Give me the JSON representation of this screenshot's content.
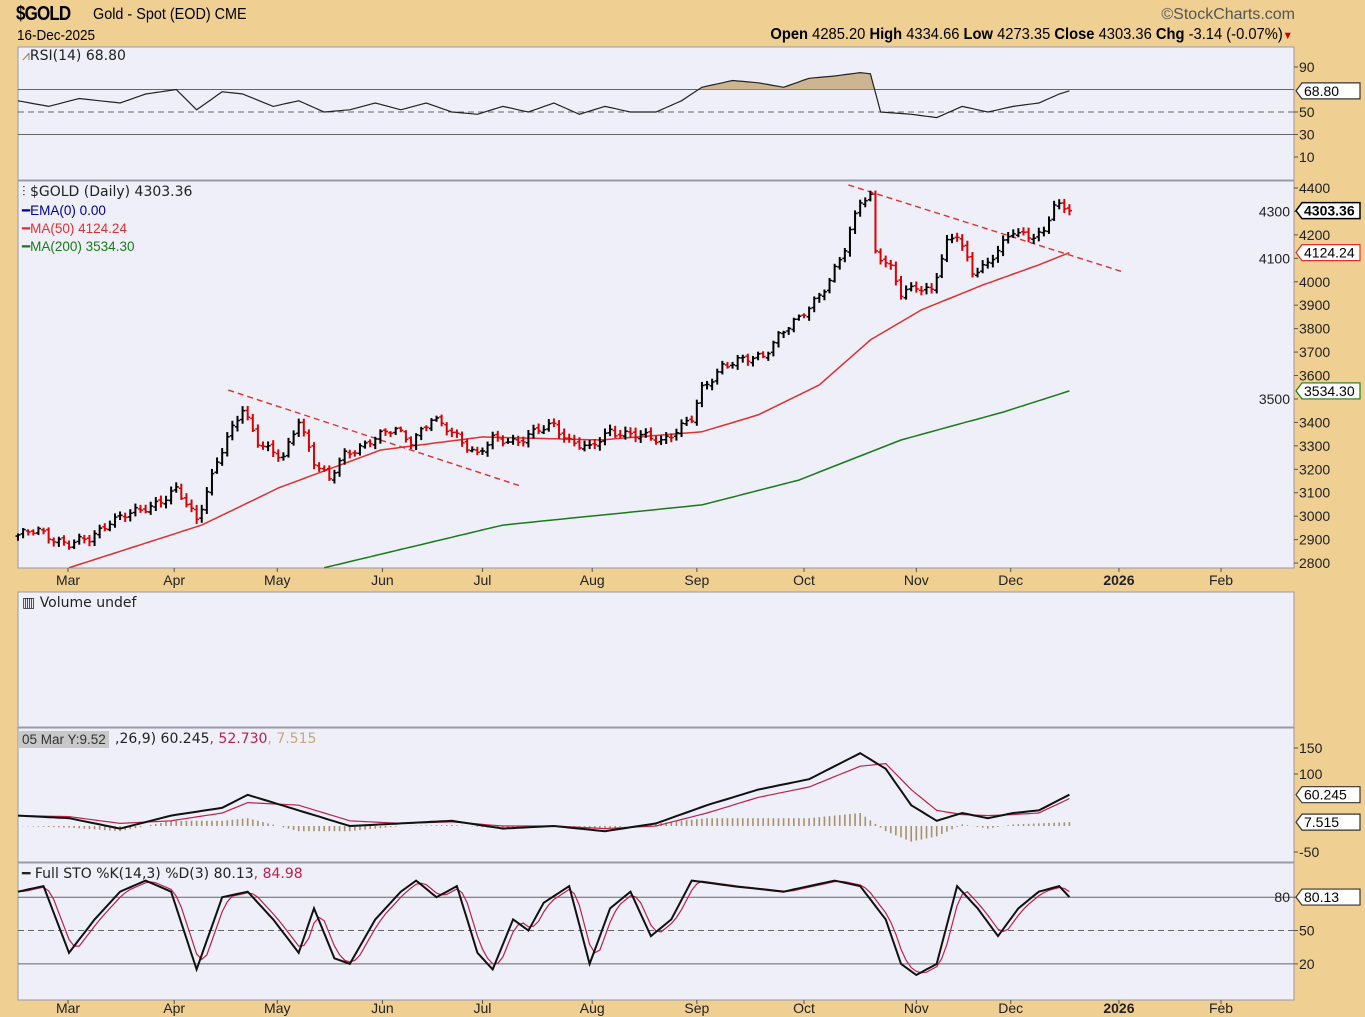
{
  "header": {
    "symbol": "$GOLD",
    "description": "Gold - Spot (EOD) CME",
    "date": "16-Dec-2025",
    "brand": "©StockCharts.com",
    "open_label": "Open",
    "open": "4285.20",
    "high_label": "High",
    "high": "4334.66",
    "low_label": "Low",
    "low": "4273.35",
    "close_label": "Close",
    "close": "4303.36",
    "chg_label": "Chg",
    "chg": "-3.14 (-0.07%)",
    "chg_arrow": "▼"
  },
  "legends": {
    "rsi": "RSI(14) 68.80",
    "price": "$GOLD (Daily) 4303.36",
    "ema": "EMA(0) 0.00",
    "ma50": "MA(50) 4124.24",
    "ma200": "MA(200) 3534.30",
    "volume": "Volume undef",
    "macd_suffix": ",26,9) 60.245",
    "macd_signal": ", 52.730",
    "macd_hist": ", 7.515",
    "tooltip": "05 Mar Y:9.52",
    "sto": "Full STO %K(14,3) %D(3) 80.13",
    "sto_d": ", 84.98"
  },
  "colors": {
    "background": "#efcf92",
    "panel": "#eeeff8",
    "up": "#000000",
    "down": "#dd0000",
    "ma50": "#e03030",
    "ma200": "#1a7a1a",
    "ema": "#000099",
    "rsi_fill": "#c8aa80",
    "macd_signal": "#c0204a",
    "macd_hist": "#a89068"
  },
  "chart_data": {
    "type": "line",
    "x_unit": "trading days since early Mar 2025",
    "xlim": [
      0,
      250
    ],
    "month_ticks": [
      {
        "label": "Mar",
        "day": 9.8
      },
      {
        "label": "Apr",
        "day": 30.6
      },
      {
        "label": "May",
        "day": 50.8
      },
      {
        "label": "Jun",
        "day": 71.4
      },
      {
        "label": "Jul",
        "day": 91
      },
      {
        "label": "Aug",
        "day": 112.5
      },
      {
        "label": "Sep",
        "day": 133
      },
      {
        "label": "Oct",
        "day": 154
      },
      {
        "label": "Nov",
        "day": 176
      },
      {
        "label": "Dec",
        "day": 194.5
      },
      {
        "label": "2026",
        "day": 215.7,
        "bold": true
      },
      {
        "label": "Feb",
        "day": 235.7
      }
    ],
    "price": {
      "ylim": [
        2780,
        4420
      ],
      "ticks": [
        4400,
        4300,
        4200,
        4100,
        4000,
        3900,
        3800,
        3700,
        3600,
        3500,
        3400,
        3300,
        3200,
        3100,
        3000,
        2900,
        2800
      ],
      "closes": [
        [
          0,
          2920
        ],
        [
          4,
          2935
        ],
        [
          10,
          2880
        ],
        [
          14,
          2900
        ],
        [
          18,
          2984
        ],
        [
          24,
          3020
        ],
        [
          31,
          3110
        ],
        [
          35,
          2984
        ],
        [
          39,
          3240
        ],
        [
          44,
          3453
        ],
        [
          47,
          3325
        ],
        [
          52,
          3240
        ],
        [
          55,
          3410
        ],
        [
          58,
          3240
        ],
        [
          61,
          3154
        ],
        [
          64,
          3260
        ],
        [
          69,
          3325
        ],
        [
          74,
          3368
        ],
        [
          77,
          3325
        ],
        [
          81,
          3410
        ],
        [
          86,
          3346
        ],
        [
          90,
          3260
        ],
        [
          93,
          3325
        ],
        [
          98,
          3325
        ],
        [
          105,
          3390
        ],
        [
          108,
          3325
        ],
        [
          112,
          3282
        ],
        [
          116,
          3368
        ],
        [
          122,
          3338
        ],
        [
          126,
          3325
        ],
        [
          132,
          3410
        ],
        [
          134,
          3540
        ],
        [
          138,
          3645
        ],
        [
          143,
          3666
        ],
        [
          146,
          3688
        ],
        [
          149,
          3773
        ],
        [
          153,
          3837
        ],
        [
          156,
          3922
        ],
        [
          159,
          4007
        ],
        [
          162,
          4135
        ],
        [
          165,
          4350
        ],
        [
          167,
          4370
        ],
        [
          168,
          4135
        ],
        [
          171,
          4050
        ],
        [
          173,
          3943
        ],
        [
          176,
          3986
        ],
        [
          179,
          3965
        ],
        [
          182,
          4157
        ],
        [
          184,
          4200
        ],
        [
          187,
          4050
        ],
        [
          190,
          4072
        ],
        [
          193,
          4157
        ],
        [
          195,
          4221
        ],
        [
          198,
          4200
        ],
        [
          201,
          4200
        ],
        [
          203,
          4327
        ],
        [
          206,
          4303.36
        ]
      ],
      "ma50": [
        [
          10,
          2780
        ],
        [
          36,
          2962
        ],
        [
          51,
          3120
        ],
        [
          71,
          3282
        ],
        [
          91,
          3338
        ],
        [
          114,
          3325
        ],
        [
          134,
          3360
        ],
        [
          145,
          3432
        ],
        [
          157,
          3560
        ],
        [
          167,
          3752
        ],
        [
          177,
          3880
        ],
        [
          189,
          3986
        ],
        [
          200,
          4072
        ],
        [
          206,
          4124.24
        ]
      ],
      "ma200": [
        [
          60,
          2780
        ],
        [
          95,
          2962
        ],
        [
          134,
          3048
        ],
        [
          153,
          3154
        ],
        [
          173,
          3325
        ],
        [
          193,
          3444
        ],
        [
          206,
          3534.3
        ]
      ],
      "trendlines": [
        [
          [
            41.2,
            3538
          ],
          [
            98.4,
            3129
          ]
        ],
        [
          [
            162.7,
            4413
          ],
          [
            216.5,
            4042
          ]
        ]
      ],
      "tags": {
        "close": "4303.36",
        "ma50": "4124.24",
        "ma200": "3534.30"
      }
    },
    "rsi": {
      "ylim": [
        0,
        100
      ],
      "ticks": [
        90,
        50,
        30,
        10
      ],
      "levels": [
        70,
        50,
        30
      ],
      "values": [
        [
          0,
          60
        ],
        [
          6,
          55
        ],
        [
          12,
          62
        ],
        [
          20,
          58
        ],
        [
          25,
          66
        ],
        [
          31,
          70
        ],
        [
          35,
          52
        ],
        [
          40,
          68
        ],
        [
          44,
          66
        ],
        [
          50,
          55
        ],
        [
          55,
          60
        ],
        [
          60,
          50
        ],
        [
          65,
          52
        ],
        [
          70,
          58
        ],
        [
          75,
          52
        ],
        [
          80,
          58
        ],
        [
          85,
          50
        ],
        [
          90,
          48
        ],
        [
          95,
          55
        ],
        [
          100,
          50
        ],
        [
          105,
          58
        ],
        [
          110,
          48
        ],
        [
          115,
          55
        ],
        [
          120,
          50
        ],
        [
          125,
          50
        ],
        [
          130,
          60
        ],
        [
          134,
          72
        ],
        [
          140,
          78
        ],
        [
          145,
          76
        ],
        [
          150,
          72
        ],
        [
          155,
          80
        ],
        [
          160,
          82
        ],
        [
          165,
          85
        ],
        [
          167,
          84
        ],
        [
          169,
          50
        ],
        [
          175,
          48
        ],
        [
          180,
          45
        ],
        [
          185,
          55
        ],
        [
          190,
          50
        ],
        [
          195,
          55
        ],
        [
          200,
          58
        ],
        [
          204,
          66
        ],
        [
          206,
          68.8
        ]
      ],
      "tag": "68.80"
    },
    "macd": {
      "ylim": [
        -80,
        190
      ],
      "ticks": [
        150,
        100,
        -50
      ],
      "macd": [
        [
          0,
          20
        ],
        [
          10,
          15
        ],
        [
          20,
          -5
        ],
        [
          30,
          20
        ],
        [
          40,
          35
        ],
        [
          45,
          60
        ],
        [
          55,
          30
        ],
        [
          65,
          0
        ],
        [
          75,
          5
        ],
        [
          85,
          10
        ],
        [
          95,
          -5
        ],
        [
          105,
          0
        ],
        [
          115,
          -10
        ],
        [
          125,
          5
        ],
        [
          135,
          40
        ],
        [
          145,
          70
        ],
        [
          155,
          90
        ],
        [
          165,
          140
        ],
        [
          170,
          110
        ],
        [
          175,
          40
        ],
        [
          180,
          10
        ],
        [
          185,
          25
        ],
        [
          190,
          15
        ],
        [
          195,
          25
        ],
        [
          200,
          30
        ],
        [
          206,
          60.245
        ]
      ],
      "signal": [
        [
          0,
          20
        ],
        [
          10,
          18
        ],
        [
          20,
          5
        ],
        [
          30,
          10
        ],
        [
          40,
          25
        ],
        [
          45,
          45
        ],
        [
          55,
          40
        ],
        [
          65,
          10
        ],
        [
          75,
          5
        ],
        [
          85,
          8
        ],
        [
          95,
          0
        ],
        [
          105,
          0
        ],
        [
          115,
          -5
        ],
        [
          125,
          0
        ],
        [
          135,
          25
        ],
        [
          145,
          55
        ],
        [
          155,
          75
        ],
        [
          165,
          115
        ],
        [
          170,
          120
        ],
        [
          175,
          70
        ],
        [
          180,
          30
        ],
        [
          185,
          22
        ],
        [
          190,
          20
        ],
        [
          195,
          22
        ],
        [
          200,
          25
        ],
        [
          206,
          52.73
        ]
      ],
      "tags": {
        "macd": "60.245",
        "hist": "7.515"
      }
    },
    "sto": {
      "ylim": [
        0,
        100
      ],
      "ticks": [
        80,
        50,
        20
      ],
      "levels": [
        80,
        50,
        20
      ],
      "k": [
        [
          0,
          85
        ],
        [
          5,
          90
        ],
        [
          10,
          30
        ],
        [
          15,
          60
        ],
        [
          20,
          85
        ],
        [
          25,
          95
        ],
        [
          30,
          85
        ],
        [
          35,
          15
        ],
        [
          40,
          80
        ],
        [
          45,
          85
        ],
        [
          50,
          60
        ],
        [
          55,
          30
        ],
        [
          58,
          70
        ],
        [
          62,
          25
        ],
        [
          65,
          20
        ],
        [
          70,
          60
        ],
        [
          75,
          85
        ],
        [
          78,
          95
        ],
        [
          82,
          80
        ],
        [
          86,
          90
        ],
        [
          90,
          30
        ],
        [
          93,
          15
        ],
        [
          97,
          60
        ],
        [
          100,
          50
        ],
        [
          103,
          75
        ],
        [
          108,
          90
        ],
        [
          112,
          20
        ],
        [
          116,
          70
        ],
        [
          120,
          85
        ],
        [
          124,
          45
        ],
        [
          128,
          60
        ],
        [
          132,
          95
        ],
        [
          140,
          90
        ],
        [
          150,
          85
        ],
        [
          160,
          95
        ],
        [
          165,
          90
        ],
        [
          170,
          60
        ],
        [
          173,
          20
        ],
        [
          176,
          10
        ],
        [
          180,
          20
        ],
        [
          184,
          90
        ],
        [
          188,
          70
        ],
        [
          192,
          45
        ],
        [
          196,
          70
        ],
        [
          200,
          85
        ],
        [
          204,
          90
        ],
        [
          206,
          80.13
        ]
      ],
      "tag": "80.13"
    }
  }
}
